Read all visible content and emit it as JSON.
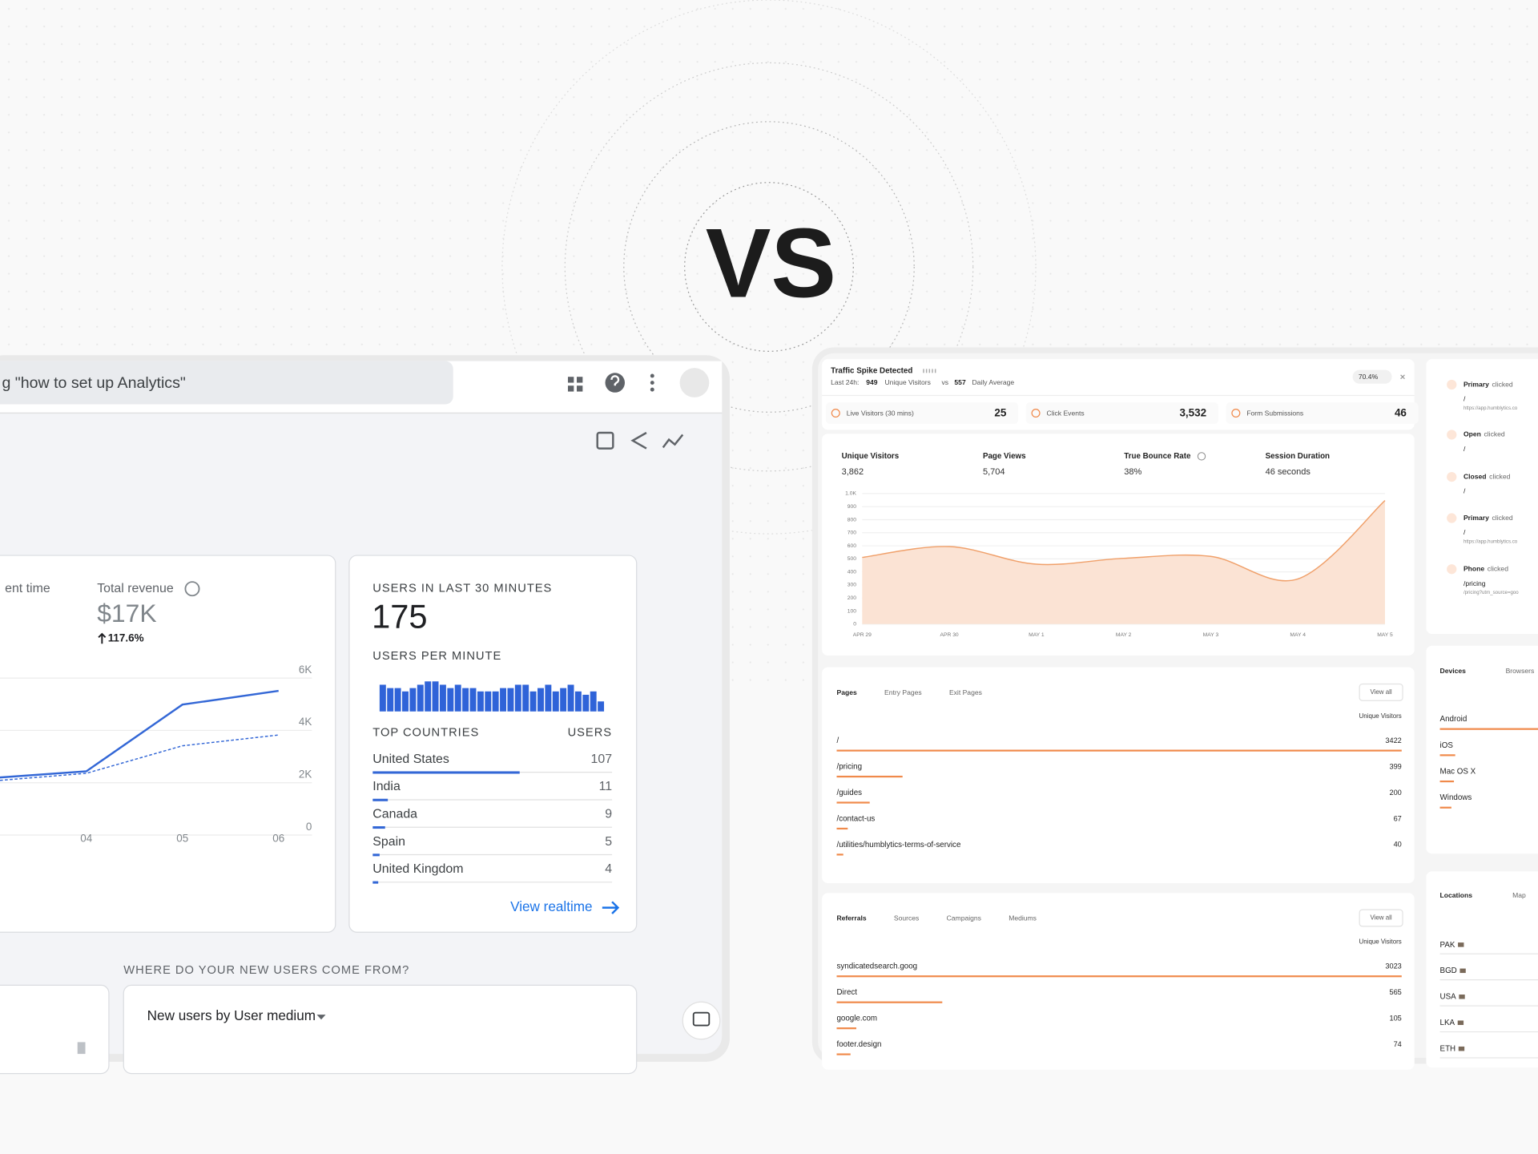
{
  "hero": {
    "title": "VS"
  },
  "left": {
    "search": "g \"how to set up Analytics\"",
    "metrics": [
      {
        "label": "ent time"
      },
      {
        "label": "Total revenue",
        "value": "$17K",
        "change": "117.6%"
      }
    ],
    "trend_chart": {
      "type": "line",
      "categories": [
        null,
        "04",
        "05",
        "06"
      ],
      "series": [
        {
          "color": "#3367d6",
          "style": "solid",
          "values": [
            2175,
            2437,
            4987,
            5512
          ]
        },
        {
          "color": "#3367d6",
          "style": "dashed",
          "values": [
            2060,
            2360,
            3412,
            3825
          ]
        }
      ],
      "ylim": [
        0,
        6000
      ],
      "yticks": [
        0,
        {
          "value": 2000,
          "label": "2K"
        },
        {
          "value": 4000,
          "label": "4K"
        },
        {
          "value": 6000,
          "label": "6K"
        }
      ],
      "grid": true
    },
    "realtime": {
      "title": "USERS IN LAST 30 MINUTES",
      "users": 175,
      "per_minute_title": "USERS PER MINUTE",
      "per_minute": {
        "type": "bar",
        "color": "#2f63d8",
        "values": [
          8,
          7,
          7,
          6,
          7,
          8,
          9,
          9,
          8,
          7,
          8,
          7,
          7,
          6,
          6,
          6,
          7,
          7,
          8,
          8,
          6,
          7,
          8,
          6,
          7,
          8,
          6,
          5,
          6,
          3
        ],
        "ylim": [
          0,
          10
        ]
      },
      "countries_header": "TOP COUNTRIES",
      "users_header": "USERS",
      "countries": [
        {
          "name": "United States",
          "users": 107
        },
        {
          "name": "India",
          "users": 11
        },
        {
          "name": "Canada",
          "users": 9
        },
        {
          "name": "Spain",
          "users": 5
        },
        {
          "name": "United Kingdom",
          "users": 4
        }
      ],
      "link": "View realtime"
    },
    "acquisition": {
      "title": "WHERE DO YOUR NEW USERS COME FROM?",
      "card_title": "New users by User medium"
    }
  },
  "right": {
    "alert": {
      "title": "Traffic Spike Detected",
      "period": "Last 24h:",
      "visitors": 949,
      "visitors_label": "Unique Visitors",
      "vs": "vs",
      "average": 557,
      "average_label": "Daily Average",
      "change": "70.4%"
    },
    "live": [
      {
        "label": "Live Visitors (30 mins)",
        "value": "25"
      },
      {
        "label": "Click Events",
        "value": "3,532"
      },
      {
        "label": "Form Submissions",
        "value": "46"
      }
    ],
    "summary": [
      {
        "label": "Unique Visitors",
        "value": "3,862"
      },
      {
        "label": "Page Views",
        "value": "5,704"
      },
      {
        "label": "True Bounce Rate",
        "value": "38%"
      },
      {
        "label": "Session Duration",
        "value": "46 seconds"
      }
    ],
    "traffic_chart": {
      "type": "area",
      "categories": [
        "APR 29",
        "APR 30",
        "MAY 1",
        "MAY 2",
        "MAY 3",
        "MAY 4",
        "MAY 5"
      ],
      "values": [
        511,
        594,
        459,
        504,
        519,
        346,
        947
      ],
      "color": "#f0a06a",
      "fill": "#fbe3d4",
      "ylim": [
        0,
        1000
      ],
      "yticks": [
        0,
        100,
        200,
        300,
        400,
        500,
        600,
        700,
        800,
        900,
        {
          "value": 1000,
          "label": "1.0K"
        }
      ],
      "grid": true
    },
    "pages": {
      "tabs": [
        "Pages",
        "Entry Pages",
        "Exit Pages"
      ],
      "button": "View all",
      "column": "Unique Visitors",
      "rows": [
        {
          "label": "/",
          "value": 3422
        },
        {
          "label": "/pricing",
          "value": 399
        },
        {
          "label": "/guides",
          "value": 200
        },
        {
          "label": "/contact-us",
          "value": 67
        },
        {
          "label": "/utilities/humblytics-terms-of-service",
          "value": 40
        }
      ]
    },
    "referrals": {
      "tabs": [
        "Referrals",
        "Sources",
        "Campaigns",
        "Mediums"
      ],
      "button": "View all",
      "column": "Unique Visitors",
      "rows": [
        {
          "label": "syndicatedsearch.goog",
          "value": 3023
        },
        {
          "label": "Direct",
          "value": 565
        },
        {
          "label": "google.com",
          "value": 105
        },
        {
          "label": "footer.design",
          "value": 74
        }
      ]
    },
    "activity": [
      {
        "action": "Primary",
        "verb": "clicked",
        "path": "/",
        "url": "https://app.humblytics.co"
      },
      {
        "action": "Open",
        "verb": "clicked",
        "path": "/"
      },
      {
        "action": "Closed",
        "verb": "clicked",
        "path": "/"
      },
      {
        "action": "Primary",
        "verb": "clicked",
        "path": "/",
        "url": "https://app.humblytics.co"
      },
      {
        "action": "Phone",
        "verb": "clicked",
        "path": "/pricing",
        "url": "/pricing?utm_source=goo"
      }
    ],
    "devices": {
      "tabs": [
        "Devices",
        "Browsers"
      ],
      "xlim": [
        0,
        100
      ],
      "color": "#f08a4b",
      "rows": [
        {
          "label": "Android",
          "share": 80
        },
        {
          "label": "iOS",
          "share": 12
        },
        {
          "label": "Mac OS X",
          "share": 11
        },
        {
          "label": "Windows",
          "share": 9
        }
      ]
    },
    "locations": {
      "tabs": [
        "Locations",
        "Map"
      ],
      "rows": [
        "PAK",
        "BGD",
        "USA",
        "LKA",
        "ETH"
      ]
    }
  }
}
